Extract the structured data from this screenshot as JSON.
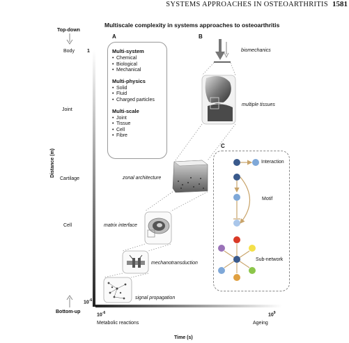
{
  "header": {
    "title": "SYSTEMS APPROACHES IN OSTEOARTHRITIS",
    "page_number": "1581"
  },
  "figure": {
    "title": "Multiscale complexity in systems approaches to osteoarthritis",
    "top_label": "Top-down",
    "bottom_label": "Bottom-up",
    "y_axis_label": "Distance (m)",
    "x_axis_label": "Time (s)",
    "y_max": "1",
    "y_min": "10",
    "y_min_exp": "-6",
    "x_min": "10",
    "x_min_exp": "-6",
    "x_max": "10",
    "x_max_exp": "9",
    "x_left_caption": "Metabolic reactions",
    "x_right_caption": "Ageing",
    "scales": [
      "Body",
      "Joint",
      "Cartilage",
      "Cell"
    ]
  },
  "panel_a": {
    "letter": "A",
    "groups": [
      {
        "title": "Multi-system",
        "items": [
          "Chemical",
          "Biological",
          "Mechanical"
        ]
      },
      {
        "title": "Multi-physics",
        "items": [
          "Solid",
          "Fluid",
          "Charged particles"
        ]
      },
      {
        "title": "Multi-scale",
        "items": [
          "Joint",
          "Tissue",
          "Cell",
          "Fibre"
        ]
      }
    ]
  },
  "panel_b": {
    "letter": "B",
    "labels": {
      "biomechanics": "biomechanics",
      "multiple_tissues": "multiple tissues",
      "zonal_architecture": "zonal architecture",
      "matrix_interface": "matrix interface",
      "mechanotransduction": "mechanotransduction",
      "signal_propagation": "signal propagation"
    }
  },
  "panel_c": {
    "letter": "C",
    "interaction": "Interaction",
    "motif": "Motif",
    "subnetwork": "Sub-network"
  },
  "colors": {
    "node_blue_dark": "#3a5a8c",
    "node_blue_light": "#7fa8d8",
    "arrow_tan": "#c9a46a",
    "node_red": "#d93a26",
    "node_yellow": "#f4e04a",
    "node_purple": "#9a72b8",
    "node_green": "#8cc64a",
    "node_orange": "#e0a040"
  }
}
